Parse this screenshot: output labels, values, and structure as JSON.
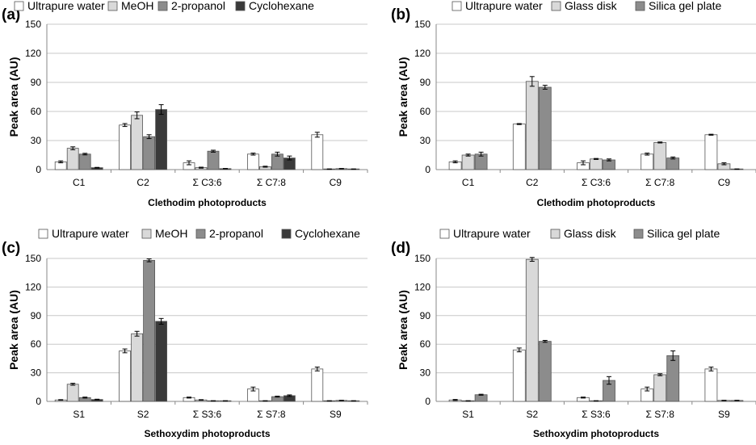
{
  "chart_data": [
    {
      "panel_label": "(a)",
      "type": "bar",
      "ylabel": "Peak area (AU)",
      "xlabel": "Clethodim photoproducts",
      "ylim": [
        0,
        150
      ],
      "yticks": [
        "0",
        "30",
        "60",
        "90",
        "120",
        "150"
      ],
      "categories": [
        "C1",
        "C2",
        "Σ C3:6",
        "Σ C7:8",
        "C9"
      ],
      "series": [
        {
          "name": "Ultrapure water",
          "color": "#ffffff",
          "values": [
            8,
            46,
            7,
            16,
            36
          ],
          "errors": [
            1,
            1.5,
            2,
            1,
            2.5
          ]
        },
        {
          "name": "MeOH",
          "color": "#d9d9d9",
          "values": [
            22,
            56,
            2,
            3,
            0.5
          ],
          "errors": [
            1.5,
            3.5,
            0.5,
            0.5,
            0.2
          ]
        },
        {
          "name": "2-propanol",
          "color": "#8c8c8c",
          "values": [
            16,
            34,
            19,
            16,
            1
          ],
          "errors": [
            0.8,
            2,
            1,
            2,
            0.2
          ]
        },
        {
          "name": "Cyclohexane",
          "color": "#3a3a3a",
          "values": [
            2,
            62,
            1,
            12,
            0.5
          ],
          "errors": [
            0.3,
            5,
            0.2,
            2,
            0.2
          ]
        }
      ]
    },
    {
      "panel_label": "(b)",
      "type": "bar",
      "ylabel": "Peak area (AU)",
      "xlabel": "Clethodim photoproducts",
      "ylim": [
        0,
        150
      ],
      "yticks": [
        "0",
        "30",
        "60",
        "90",
        "120",
        "150"
      ],
      "categories": [
        "C1",
        "C2",
        "Σ C3:6",
        "Σ C7:8",
        "C9"
      ],
      "series": [
        {
          "name": "Ultrapure water",
          "color": "#ffffff",
          "values": [
            8,
            47,
            7,
            16,
            36
          ],
          "errors": [
            1,
            0.5,
            2,
            1,
            0.5
          ]
        },
        {
          "name": "Glass disk",
          "color": "#d9d9d9",
          "values": [
            15,
            91,
            11,
            28,
            6
          ],
          "errors": [
            1,
            5,
            0.5,
            0.5,
            1
          ]
        },
        {
          "name": "Silica gel plate",
          "color": "#8c8c8c",
          "values": [
            16,
            85,
            10,
            12,
            0.5
          ],
          "errors": [
            2,
            2,
            1,
            1,
            0.2
          ]
        }
      ]
    },
    {
      "panel_label": "(c)",
      "type": "bar",
      "ylabel": "Peak area (AU)",
      "xlabel": "Sethoxydim photoproducts",
      "ylim": [
        0,
        150
      ],
      "yticks": [
        "0",
        "30",
        "60",
        "90",
        "120",
        "150"
      ],
      "categories": [
        "S1",
        "S2",
        "Σ S3:6",
        "Σ S7:8",
        "S9"
      ],
      "series": [
        {
          "name": "Ultrapure water",
          "color": "#ffffff",
          "values": [
            1.5,
            53,
            4,
            13,
            34
          ],
          "errors": [
            0.3,
            2,
            0.5,
            2,
            2
          ]
        },
        {
          "name": "MeOH",
          "color": "#d9d9d9",
          "values": [
            18,
            71,
            1.5,
            0.5,
            0.5
          ],
          "errors": [
            1,
            2.5,
            0.3,
            0.2,
            0.2
          ]
        },
        {
          "name": "2-propanol",
          "color": "#8c8c8c",
          "values": [
            4,
            148,
            0.5,
            5,
            1
          ],
          "errors": [
            0.5,
            1.5,
            0.2,
            0.5,
            0.2
          ]
        },
        {
          "name": "Cyclohexane",
          "color": "#3a3a3a",
          "values": [
            2,
            84,
            0.5,
            6,
            0.5
          ],
          "errors": [
            0.3,
            3,
            0.2,
            0.8,
            0.2
          ]
        }
      ]
    },
    {
      "panel_label": "(d)",
      "type": "bar",
      "ylabel": "Peak area (AU)",
      "xlabel": "Sethoxydim photoproducts",
      "ylim": [
        0,
        150
      ],
      "yticks": [
        "0",
        "30",
        "60",
        "90",
        "120",
        "150"
      ],
      "categories": [
        "S1",
        "S2",
        "Σ S3:6",
        "Σ S7:8",
        "S9"
      ],
      "series": [
        {
          "name": "Ultrapure water",
          "color": "#ffffff",
          "values": [
            1.5,
            54,
            4,
            13,
            34
          ],
          "errors": [
            0.5,
            2,
            0.5,
            2,
            2
          ]
        },
        {
          "name": "Glass disk",
          "color": "#d9d9d9",
          "values": [
            0.5,
            149,
            0.5,
            28,
            1
          ],
          "errors": [
            0.2,
            2,
            0.2,
            1,
            0.2
          ]
        },
        {
          "name": "Silica gel plate",
          "color": "#8c8c8c",
          "values": [
            7,
            63,
            22,
            48,
            1
          ],
          "errors": [
            0.5,
            1,
            4,
            5,
            0.2
          ]
        }
      ]
    }
  ]
}
